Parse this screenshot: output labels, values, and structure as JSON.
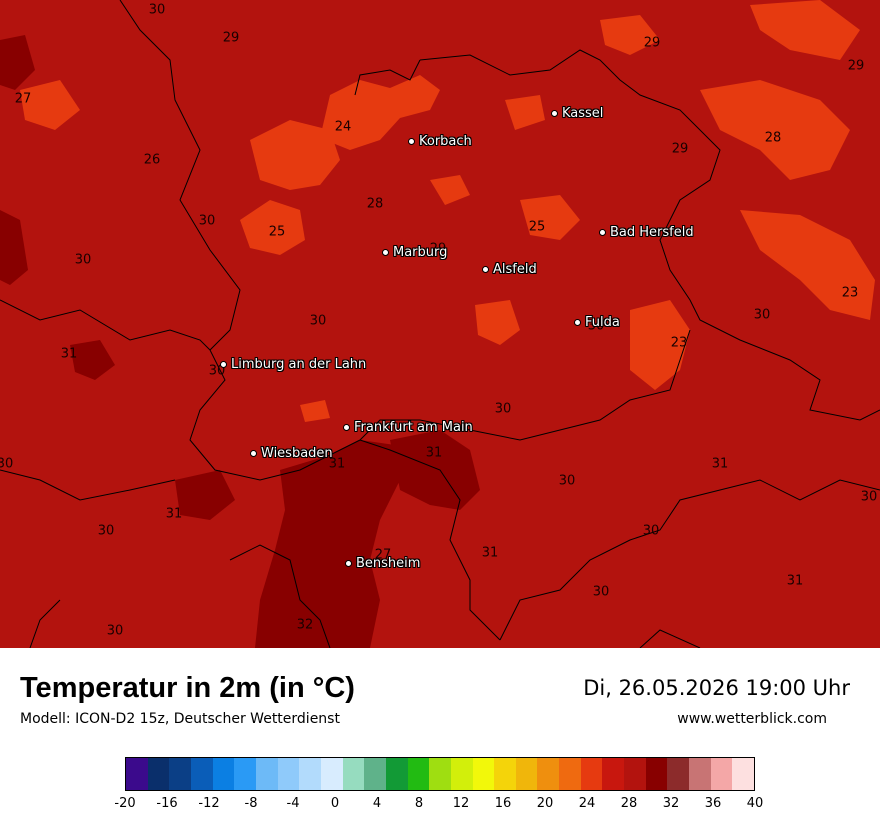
{
  "map": {
    "colors": {
      "base": "#b3130e",
      "warm": "#e63a10",
      "hot": "#880000",
      "border": "#000000"
    },
    "cities": [
      {
        "name": "Kassel"
      },
      {
        "name": "Korbach"
      },
      {
        "name": "Bad Hersfeld"
      },
      {
        "name": "Marburg"
      },
      {
        "name": "Alsfeld"
      },
      {
        "name": "Fulda"
      },
      {
        "name": "Limburg an der Lahn"
      },
      {
        "name": "Frankfurt am Main"
      },
      {
        "name": "Wiesbaden"
      },
      {
        "name": "Bensheim"
      }
    ],
    "values": [
      "30",
      "29",
      "29",
      "29",
      "27",
      "24",
      "26",
      "29",
      "28",
      "30",
      "28",
      "25",
      "25",
      "30",
      "29",
      "23",
      "30",
      "30",
      "31",
      "30",
      "30",
      "30",
      "31",
      "31",
      "30",
      "30",
      "31",
      "31",
      "30",
      "30",
      "31",
      "27",
      "31",
      "30",
      "30",
      "32",
      "30",
      "23"
    ]
  },
  "footer": {
    "title": "Temperatur in 2m (in °C)",
    "model": "Modell: ICON-D2 15z, Deutscher Wetterdienst",
    "datetime": "Di, 26.05.2026 19:00 Uhr",
    "website": "www.wetterblick.com"
  },
  "legend": {
    "colors": [
      "#3b0a8c",
      "#0a2f6b",
      "#0b3f86",
      "#0a5db8",
      "#0b7fe3",
      "#2a9af5",
      "#6dbaf7",
      "#8fcafa",
      "#b2dbfc",
      "#d8ecfe",
      "#96dcbf",
      "#5fb28a",
      "#129a36",
      "#22bb12",
      "#9fde11",
      "#d2ef0b",
      "#f2f80a",
      "#f4d40a",
      "#f0b60b",
      "#ef8f0e",
      "#ef6a10",
      "#e63a10",
      "#c8170e",
      "#b3130e",
      "#880000",
      "#8c2b2b",
      "#c87474",
      "#f4a7a7",
      "#fde0e0"
    ],
    "ticks": [
      "-20",
      "-16",
      "-12",
      "-8",
      "-4",
      "0",
      "4",
      "8",
      "12",
      "16",
      "20",
      "24",
      "28",
      "32",
      "36",
      "40"
    ]
  }
}
